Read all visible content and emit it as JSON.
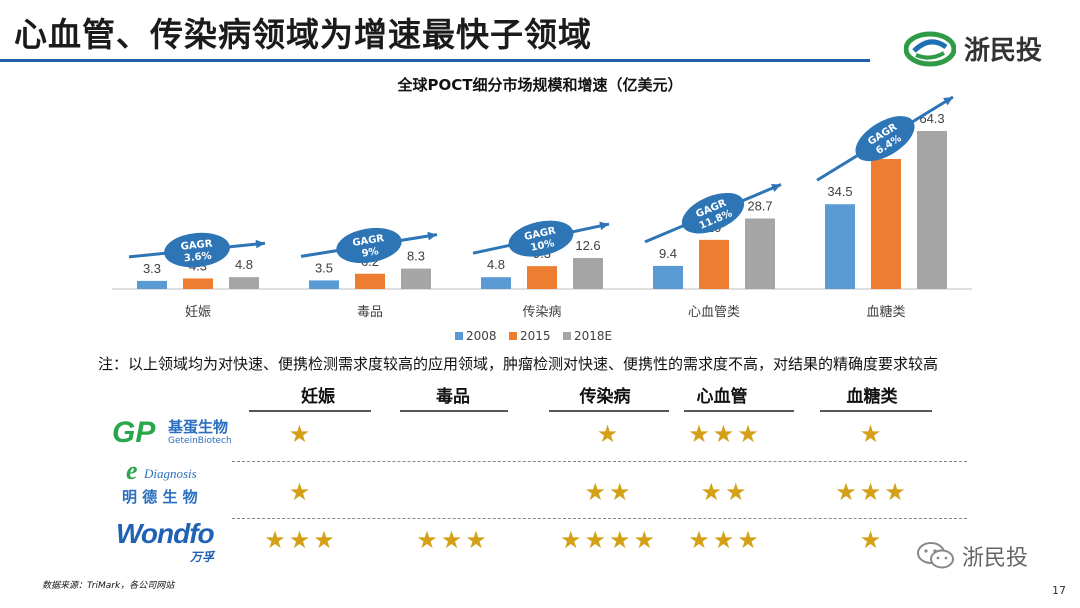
{
  "slide": {
    "title": "心血管、传染病领域为增速最快子领域",
    "brand": "浙民投",
    "note": "注：以上领域均为对快速、便携检测需求度较高的应用领域，肿瘤检测对快速、便携性的需求度不高，对结果的精确度要求较高",
    "source": "数据来源：TriMark，各公司网站",
    "page_number": "17",
    "watermark": "浙民投"
  },
  "chart_data": {
    "type": "bar",
    "title": "全球POCT细分市场规模和增速（亿美元）",
    "categories": [
      "妊娠",
      "毒品",
      "传染病",
      "心血管类",
      "血糖类"
    ],
    "series": [
      {
        "name": "2008",
        "color": "#5b9bd5",
        "values": [
          3.3,
          3.5,
          4.8,
          9.4,
          34.5
        ]
      },
      {
        "name": "2015",
        "color": "#ed7d31",
        "values": [
          4.3,
          6.2,
          9.3,
          20,
          52.9
        ]
      },
      {
        "name": "2018E",
        "color": "#a5a5a5",
        "values": [
          4.8,
          8.3,
          12.6,
          28.7,
          64.3
        ]
      }
    ],
    "data_labels": [
      [
        "3.3",
        "4.3",
        "4.8"
      ],
      [
        "3.5",
        "6.2",
        "8.3"
      ],
      [
        "4.8",
        "9.3",
        "12.6"
      ],
      [
        "9.4",
        "20",
        "28.7"
      ],
      [
        "34.5",
        "52.9",
        "64.3"
      ]
    ],
    "annotations": [
      {
        "label": "GAGR",
        "value": "3.6%"
      },
      {
        "label": "GAGR",
        "value": "9%"
      },
      {
        "label": "GAGR",
        "value": "10%"
      },
      {
        "label": "GAGR",
        "value": "11.8%"
      },
      {
        "label": "GAGR",
        "value": "6.4%"
      }
    ],
    "ylim": [
      0,
      70
    ],
    "grid": false,
    "legend": "bottom"
  },
  "table": {
    "columns": [
      "妊娠",
      "毒品",
      "传染病",
      "心血管",
      "血糖类"
    ],
    "rows": [
      {
        "company": "基蛋生物",
        "company_en": "GeteinBiotech",
        "logo_mark": "GP",
        "ratings": [
          1,
          0,
          1,
          3,
          1
        ]
      },
      {
        "company": "明 德 生 物",
        "company_en": "Diagnosis",
        "logo_mark": "e",
        "ratings": [
          1,
          0,
          2,
          2,
          3
        ]
      },
      {
        "company": "万孚",
        "company_en": "",
        "logo_mark": "Wondfo",
        "ratings": [
          3,
          3,
          4,
          3,
          1
        ]
      }
    ]
  }
}
